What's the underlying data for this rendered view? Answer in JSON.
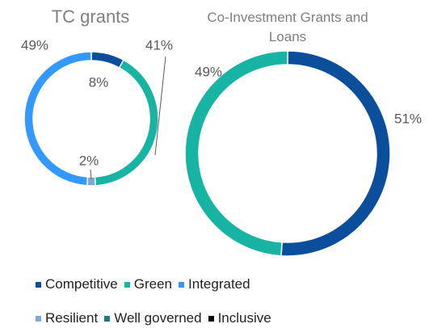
{
  "chart_data": [
    {
      "type": "donut",
      "title": "TC grants",
      "categories": [
        "Competitive",
        "Green",
        "Resilient",
        "Integrated"
      ],
      "values": [
        8,
        41,
        2,
        49
      ],
      "value_labels": [
        "8%",
        "41%",
        "2%",
        "49%"
      ],
      "colors": [
        "#0b4f9c",
        "#17b3a3",
        "#7fa7d8",
        "#3399ff"
      ]
    },
    {
      "type": "donut",
      "title": "Co-Investment  Grants and Loans",
      "categories": [
        "Competitive",
        "Green"
      ],
      "values": [
        51,
        49
      ],
      "value_labels": [
        "51%",
        "49%"
      ],
      "colors": [
        "#0b4f9c",
        "#17b3a3"
      ]
    }
  ],
  "legend": {
    "items": [
      {
        "name": "Competitive",
        "color": "#0b4f9c"
      },
      {
        "name": "Green",
        "color": "#17b3a3"
      },
      {
        "name": "Integrated",
        "color": "#3399ff"
      },
      {
        "name": "Resilient",
        "color": "#7fa7d8"
      },
      {
        "name": "Well governed",
        "color": "#1a7a80"
      },
      {
        "name": "Inclusive",
        "color": "#000000"
      }
    ]
  }
}
